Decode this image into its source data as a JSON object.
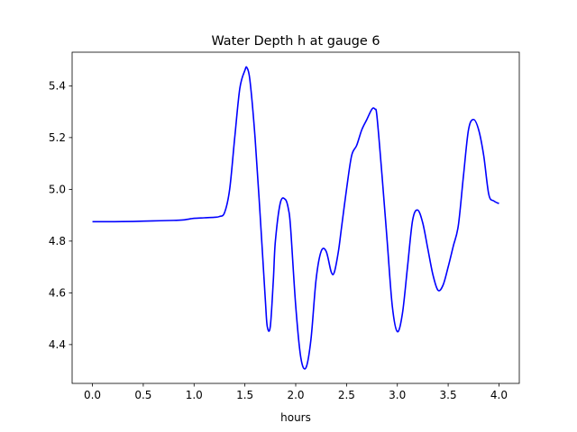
{
  "chart_data": {
    "type": "line",
    "title": "Water Depth h at gauge 6",
    "xlabel": "hours",
    "ylabel": "",
    "xlim": [
      -0.2,
      4.2
    ],
    "ylim": [
      4.25,
      5.53
    ],
    "xticks": [
      "0.0",
      "0.5",
      "1.0",
      "1.5",
      "2.0",
      "2.5",
      "3.0",
      "3.5",
      "4.0"
    ],
    "yticks": [
      "4.4",
      "4.6",
      "4.8",
      "5.0",
      "5.2",
      "5.4"
    ],
    "grid": false,
    "series": [
      {
        "color": "#0000ff",
        "x": [
          0.0,
          0.2,
          0.4,
          0.6,
          0.8,
          0.9,
          1.0,
          1.1,
          1.2,
          1.25,
          1.3,
          1.35,
          1.4,
          1.45,
          1.5,
          1.52,
          1.55,
          1.6,
          1.65,
          1.7,
          1.72,
          1.75,
          1.78,
          1.8,
          1.85,
          1.9,
          1.93,
          1.95,
          2.0,
          2.05,
          2.1,
          2.15,
          2.2,
          2.25,
          2.3,
          2.35,
          2.38,
          2.42,
          2.45,
          2.5,
          2.55,
          2.6,
          2.65,
          2.7,
          2.75,
          2.78,
          2.8,
          2.85,
          2.9,
          2.95,
          3.0,
          3.05,
          3.1,
          3.15,
          3.2,
          3.25,
          3.3,
          3.35,
          3.4,
          3.45,
          3.5,
          3.55,
          3.6,
          3.65,
          3.7,
          3.75,
          3.8,
          3.85,
          3.9,
          3.95,
          4.0
        ],
        "y": [
          4.875,
          4.875,
          4.876,
          4.878,
          4.88,
          4.882,
          4.888,
          4.89,
          4.892,
          4.895,
          4.91,
          5.0,
          5.2,
          5.39,
          5.46,
          5.47,
          5.42,
          5.2,
          4.9,
          4.58,
          4.47,
          4.47,
          4.65,
          4.8,
          4.95,
          4.96,
          4.92,
          4.85,
          4.55,
          4.35,
          4.31,
          4.42,
          4.65,
          4.76,
          4.76,
          4.68,
          4.68,
          4.76,
          4.85,
          5.0,
          5.13,
          5.17,
          5.23,
          5.27,
          5.31,
          5.31,
          5.28,
          5.05,
          4.8,
          4.55,
          4.45,
          4.52,
          4.7,
          4.88,
          4.92,
          4.87,
          4.77,
          4.67,
          4.61,
          4.63,
          4.7,
          4.78,
          4.86,
          5.05,
          5.23,
          5.27,
          5.23,
          5.13,
          4.98,
          4.955,
          4.945
        ]
      }
    ]
  }
}
